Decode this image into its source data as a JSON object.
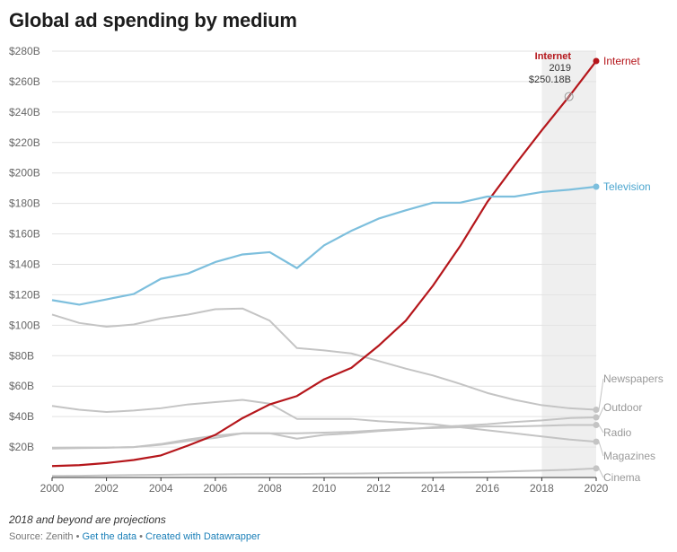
{
  "chart": {
    "title": "Global ad spending by medium",
    "notes": "2018 and beyond are projections",
    "source_prefix": "Source: Zenith",
    "separator": " • ",
    "link_data": "Get the data",
    "link_created": "Created with Datawrapper"
  },
  "chart_data": {
    "type": "line",
    "title": "Global ad spending by medium",
    "xlabel": "",
    "ylabel": "",
    "xlim": [
      2000,
      2020
    ],
    "ylim": [
      0,
      280
    ],
    "x_ticks": [
      2000,
      2002,
      2004,
      2006,
      2008,
      2010,
      2012,
      2014,
      2016,
      2018,
      2020
    ],
    "y_ticks": [
      20,
      40,
      60,
      80,
      100,
      120,
      140,
      160,
      180,
      200,
      220,
      240,
      260,
      280
    ],
    "y_tick_labels": [
      "$20B",
      "$40B",
      "$60B",
      "$80B",
      "$100B",
      "$120B",
      "$140B",
      "$160B",
      "$180B",
      "$200B",
      "$220B",
      "$240B",
      "$260B",
      "$280B"
    ],
    "projection_region": [
      2018,
      2020
    ],
    "grid": true,
    "legend": "direct labels at line ends",
    "x": [
      2000,
      2001,
      2002,
      2003,
      2004,
      2005,
      2006,
      2007,
      2008,
      2009,
      2010,
      2011,
      2012,
      2013,
      2014,
      2015,
      2016,
      2017,
      2018,
      2019,
      2020
    ],
    "series": [
      {
        "name": "Internet",
        "color": "#b5161b",
        "label_color": "#b5161b",
        "values": [
          7.5,
          8.1,
          9.5,
          11.5,
          14.5,
          21,
          28,
          39,
          48,
          53.5,
          64.5,
          72,
          86.5,
          103,
          126,
          152,
          181,
          205,
          228,
          250.18,
          273.5
        ]
      },
      {
        "name": "Television",
        "color": "#7dbfdd",
        "label_color": "#4ca6cf",
        "values": [
          116.5,
          113.5,
          117,
          120.5,
          130.5,
          134,
          141.5,
          146.5,
          148,
          137.5,
          152.5,
          162,
          170,
          175.5,
          180.5,
          180.5,
          184.5,
          184.5,
          187.5,
          189,
          191
        ]
      },
      {
        "name": "Newspapers",
        "color": "#c4c4c4",
        "label_color": "#999999",
        "values": [
          107,
          101.5,
          99,
          100.5,
          104.5,
          107,
          110.5,
          111,
          103,
          85,
          83.5,
          81.5,
          76.5,
          71.5,
          67,
          61.5,
          55.5,
          51,
          47.5,
          45.5,
          44.5
        ]
      },
      {
        "name": "Outdoor",
        "color": "#c4c4c4",
        "label_color": "#999999",
        "values": [
          19,
          19.3,
          19.5,
          20,
          22,
          25,
          27.5,
          29,
          29,
          25.5,
          28,
          29,
          30.5,
          31.5,
          33,
          34,
          35,
          36.5,
          37.5,
          39,
          39.5
        ]
      },
      {
        "name": "Radio",
        "color": "#c4c4c4",
        "label_color": "#999999",
        "values": [
          19.5,
          19.7,
          19.7,
          20,
          21.5,
          24,
          26,
          29,
          29,
          29,
          29.5,
          30,
          31,
          32,
          32.5,
          33,
          33.5,
          33.5,
          34,
          34.5,
          34.5
        ]
      },
      {
        "name": "Magazines",
        "color": "#c4c4c4",
        "label_color": "#999999",
        "values": [
          47,
          44.5,
          43,
          44,
          45.5,
          48,
          49.5,
          51,
          48.5,
          38.5,
          38.5,
          38.5,
          37,
          36,
          35,
          33,
          31,
          29,
          27,
          25,
          23.5
        ]
      },
      {
        "name": "Cinema",
        "color": "#c4c4c4",
        "label_color": "#999999",
        "values": [
          1,
          1.1,
          1.4,
          1.6,
          1.8,
          2,
          2.1,
          2.2,
          2.3,
          2.3,
          2.5,
          2.6,
          2.8,
          3,
          3.2,
          3.4,
          3.6,
          4.1,
          4.6,
          5.1,
          6
        ]
      }
    ],
    "annotation": {
      "series": "Internet",
      "title": "Internet",
      "year": "2019",
      "value": "$250.18B",
      "x": 2019,
      "y": 250.18
    }
  }
}
